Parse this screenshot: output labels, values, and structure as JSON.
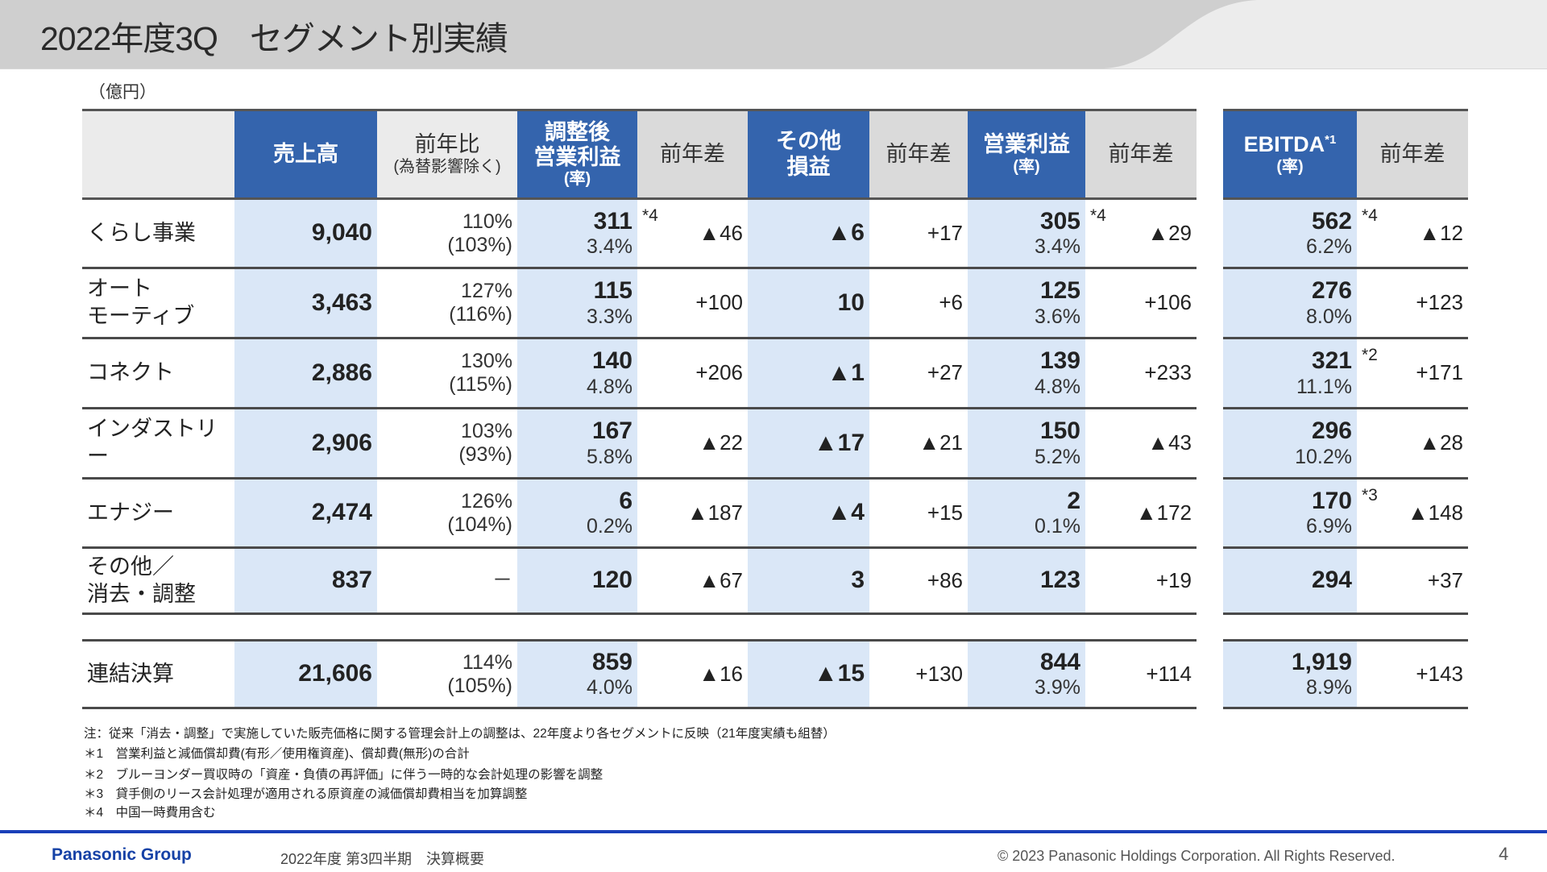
{
  "title": "2022年度3Q　セグメント別実績",
  "unit": "（億円）",
  "colors": {
    "header_blue": "#3464ad",
    "shade_blue": "#dae7f7",
    "header_gray": "#dadada",
    "footer_blue": "#1a3fb8",
    "brand_blue": "#1541a6"
  },
  "headers": {
    "sales": "売上高",
    "yoy_ratio": "前年比",
    "yoy_ratio_sub": "(為替影響除く)",
    "adj_op_1": "調整後",
    "adj_op_2": "営業利益",
    "rate": "(率)",
    "diff": "前年差",
    "other_1": "その他",
    "other_2": "損益",
    "op": "営業利益",
    "ebitda": "EBITDA",
    "ebitda_note": "*1"
  },
  "rows": [
    {
      "label1": "くらし事業",
      "label2": "",
      "sales": "9,040",
      "ratio": "110%",
      "ratio_fx": "(103%)",
      "adj_op": "311",
      "adj_op_note": "*4",
      "adj_op_rate": "3.4%",
      "adj_op_diff": "▲46",
      "other": "▲6",
      "other_diff": "+17",
      "op": "305",
      "op_note": "*4",
      "op_rate": "3.4%",
      "op_diff": "▲29",
      "ebitda": "562",
      "ebitda_note": "*4",
      "ebitda_rate": "6.2%",
      "ebitda_diff": "▲12"
    },
    {
      "label1": "オート",
      "label2": "モーティブ",
      "sales": "3,463",
      "ratio": "127%",
      "ratio_fx": "(116%)",
      "adj_op": "115",
      "adj_op_note": "",
      "adj_op_rate": "3.3%",
      "adj_op_diff": "+100",
      "other": "10",
      "other_diff": "+6",
      "op": "125",
      "op_note": "",
      "op_rate": "3.6%",
      "op_diff": "+106",
      "ebitda": "276",
      "ebitda_note": "",
      "ebitda_rate": "8.0%",
      "ebitda_diff": "+123"
    },
    {
      "label1": "コネクト",
      "label2": "",
      "sales": "2,886",
      "ratio": "130%",
      "ratio_fx": "(115%)",
      "adj_op": "140",
      "adj_op_note": "",
      "adj_op_rate": "4.8%",
      "adj_op_diff": "+206",
      "other": "▲1",
      "other_diff": "+27",
      "op": "139",
      "op_note": "",
      "op_rate": "4.8%",
      "op_diff": "+233",
      "ebitda": "321",
      "ebitda_note": "*2",
      "ebitda_rate": "11.1%",
      "ebitda_diff": "+171"
    },
    {
      "label1": "インダストリー",
      "label2": "",
      "sales": "2,906",
      "ratio": "103%",
      "ratio_fx": "(93%)",
      "adj_op": "167",
      "adj_op_note": "",
      "adj_op_rate": "5.8%",
      "adj_op_diff": "▲22",
      "other": "▲17",
      "other_diff": "▲21",
      "op": "150",
      "op_note": "",
      "op_rate": "5.2%",
      "op_diff": "▲43",
      "ebitda": "296",
      "ebitda_note": "",
      "ebitda_rate": "10.2%",
      "ebitda_diff": "▲28"
    },
    {
      "label1": "エナジー",
      "label2": "",
      "sales": "2,474",
      "ratio": "126%",
      "ratio_fx": "(104%)",
      "adj_op": "6",
      "adj_op_note": "",
      "adj_op_rate": "0.2%",
      "adj_op_diff": "▲187",
      "other": "▲4",
      "other_diff": "+15",
      "op": "2",
      "op_note": "",
      "op_rate": "0.1%",
      "op_diff": "▲172",
      "ebitda": "170",
      "ebitda_note": "*3",
      "ebitda_rate": "6.9%",
      "ebitda_diff": "▲148"
    },
    {
      "label1": "その他／",
      "label2": "消去・調整",
      "sales": "837",
      "ratio": "－",
      "ratio_fx": "",
      "adj_op": "120",
      "adj_op_note": "",
      "adj_op_rate": "",
      "adj_op_diff": "▲67",
      "other": "3",
      "other_diff": "+86",
      "op": "123",
      "op_note": "",
      "op_rate": "",
      "op_diff": "+19",
      "ebitda": "294",
      "ebitda_note": "",
      "ebitda_rate": "",
      "ebitda_diff": "+37"
    }
  ],
  "total": {
    "label1": "連結決算",
    "label2": "",
    "sales": "21,606",
    "ratio": "114%",
    "ratio_fx": "(105%)",
    "adj_op": "859",
    "adj_op_note": "",
    "adj_op_rate": "4.0%",
    "adj_op_diff": "▲16",
    "other": "▲15",
    "other_diff": "+130",
    "op": "844",
    "op_note": "",
    "op_rate": "3.9%",
    "op_diff": "+114",
    "ebitda": "1,919",
    "ebitda_note": "",
    "ebitda_rate": "8.9%",
    "ebitda_diff": "+143"
  },
  "footnotes": [
    "注：従来「消去・調整」で実施していた販売価格に関する管理会計上の調整は、22年度より各セグメントに反映（21年度実績も組替）",
    "＊1　営業利益と減価償却費(有形／使用権資産)、償却費(無形)の合計",
    "＊2　ブルーヨンダー買収時の「資産・負債の再評価」に伴う一時的な会計処理の影響を調整",
    "＊3　貸手側のリース会計処理が適用される原資産の減価償却費相当を加算調整",
    "＊4　中国一時費用含む"
  ],
  "footer": {
    "brand": "Panasonic Group",
    "doc": "2022年度 第3四半期　決算概要",
    "copyright": "© 2023 Panasonic Holdings Corporation. All Rights Reserved.",
    "page": "4"
  }
}
